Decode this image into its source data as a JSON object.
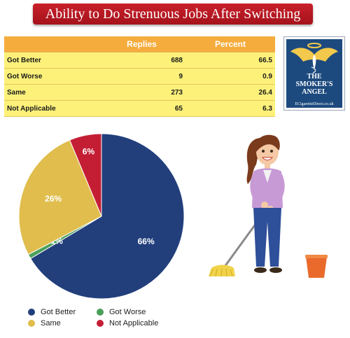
{
  "title": "Ability to Do Strenuous Jobs After Switching",
  "table": {
    "headers": [
      "",
      "Replies",
      "Percent"
    ],
    "rows": [
      {
        "label": "Got Better",
        "replies": "688",
        "percent": "66.5"
      },
      {
        "label": "Got Worse",
        "replies": "9",
        "percent": "0.9"
      },
      {
        "label": "Same",
        "replies": "273",
        "percent": "26.4"
      },
      {
        "label": "Not Applicable",
        "replies": "65",
        "percent": "6.3"
      }
    ]
  },
  "logo": {
    "line1": "THE",
    "line2": "SMOKER'S",
    "line3": "ANGEL",
    "url": "ECigaretteDirect.co.uk"
  },
  "colors": {
    "got_better": "#223f7c",
    "got_worse": "#4aa05a",
    "same": "#e0bd4c",
    "not_applicable": "#c41e35"
  },
  "chart_data": {
    "type": "pie",
    "title": "Ability to Do Strenuous Jobs After Switching",
    "legend_position": "bottom",
    "slices": [
      {
        "name": "Got Better",
        "value": 66.5,
        "label": "66%",
        "color": "#223f7c"
      },
      {
        "name": "Got Worse",
        "value": 0.9,
        "label": "1%",
        "color": "#4aa05a"
      },
      {
        "name": "Same",
        "value": 26.4,
        "label": "26%",
        "color": "#e0bd4c"
      },
      {
        "name": "Not Applicable",
        "value": 6.3,
        "label": "6%",
        "color": "#c41e35"
      }
    ]
  }
}
